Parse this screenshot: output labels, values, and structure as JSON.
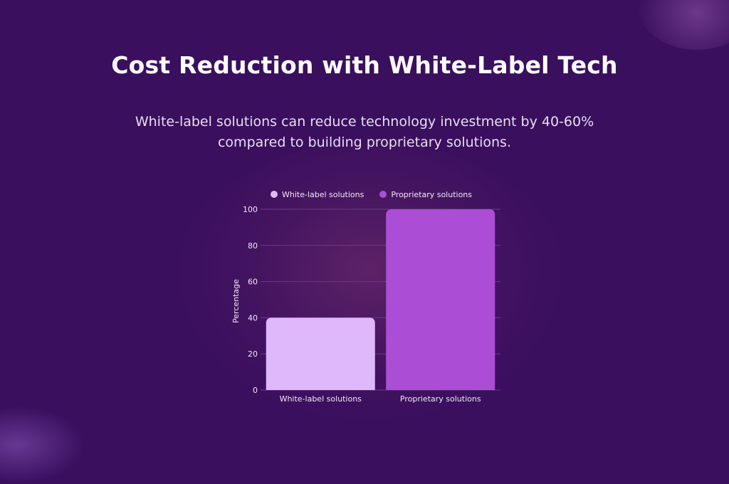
{
  "title": "Cost Reduction with White-Label Tech",
  "subtitle": "White-label solutions can reduce technology investment by 40-60% compared to building proprietary solutions.",
  "colors": {
    "background": "#3a0f5e",
    "white_label": "#dfb8fb",
    "proprietary": "#ac4ed5",
    "grid": "#6a3b86"
  },
  "chart_data": {
    "type": "bar",
    "categories": [
      "White-label solutions",
      "Proprietary solutions"
    ],
    "values": [
      40,
      100
    ],
    "series": [
      {
        "name": "White-label solutions",
        "values": [
          40,
          null
        ]
      },
      {
        "name": "Proprietary solutions",
        "values": [
          null,
          100
        ]
      }
    ],
    "ylabel": "Percentage",
    "xlabel": "",
    "ylim": [
      0,
      100
    ],
    "yticks": [
      0,
      20,
      40,
      60,
      80,
      100
    ],
    "legend": {
      "placement": "top-center",
      "entries": [
        "White-label solutions",
        "Proprietary solutions"
      ]
    },
    "grid": true
  }
}
